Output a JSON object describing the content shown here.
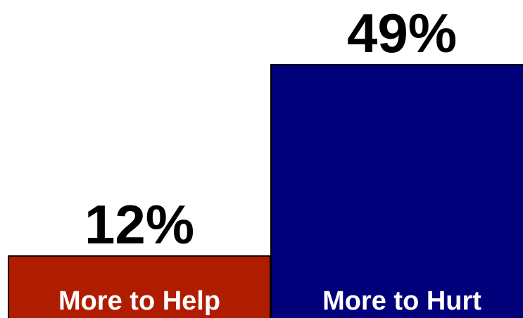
{
  "chart_data": {
    "type": "bar",
    "categories": [
      "More to Help",
      "More to Hurt"
    ],
    "values": [
      12,
      49
    ],
    "value_labels": [
      "12%",
      "49%"
    ],
    "colors": [
      "#b01c00",
      "#00007a"
    ],
    "ylim": [
      0,
      49
    ],
    "grid": false,
    "legend": "none"
  }
}
